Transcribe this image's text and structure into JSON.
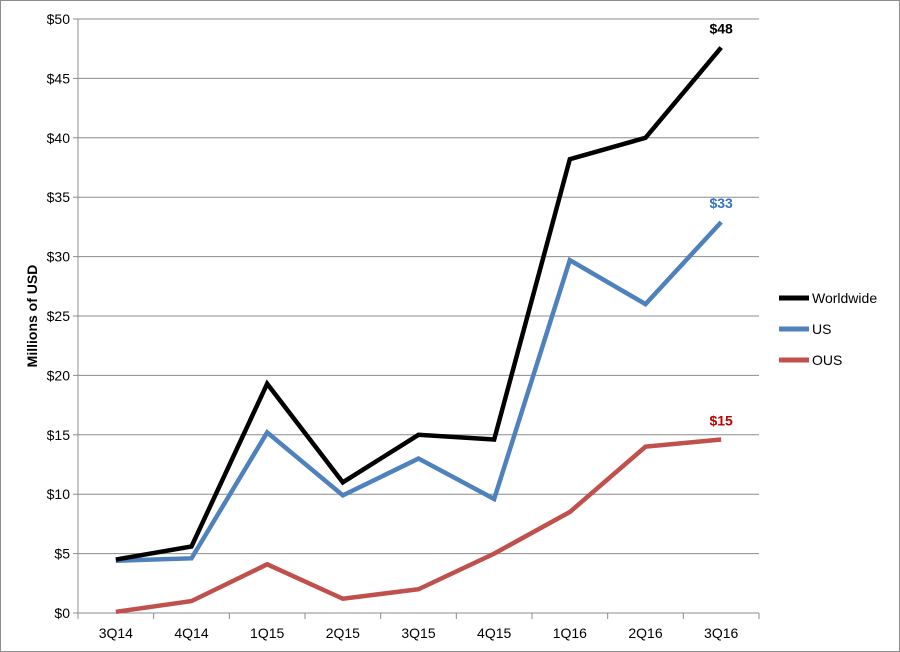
{
  "chart_data": {
    "type": "line",
    "categories": [
      "3Q14",
      "4Q14",
      "1Q15",
      "2Q15",
      "3Q15",
      "4Q15",
      "1Q16",
      "2Q16",
      "3Q16"
    ],
    "ylabel": "Millions of USD",
    "ylim": [
      0,
      50
    ],
    "yticks": [
      "$0",
      "$5",
      "$10",
      "$15",
      "$20",
      "$25",
      "$30",
      "$35",
      "$40",
      "$45",
      "$50"
    ],
    "grid": true,
    "legend_position": "right",
    "series": [
      {
        "name": "Worldwide",
        "color": "#000000",
        "values": [
          4.5,
          5.6,
          19.3,
          11.0,
          15.0,
          14.6,
          38.2,
          40.0,
          47.6
        ],
        "end_label": "$48"
      },
      {
        "name": "US",
        "color": "#4f81bd",
        "values": [
          4.4,
          4.6,
          15.2,
          9.9,
          13.0,
          9.6,
          29.7,
          26.0,
          32.9
        ],
        "end_label": "$33"
      },
      {
        "name": "OUS",
        "color": "#c0504d",
        "values": [
          0.1,
          1.0,
          4.1,
          1.2,
          2.0,
          5.0,
          8.5,
          14.0,
          14.6
        ],
        "end_label": "$15"
      }
    ]
  }
}
